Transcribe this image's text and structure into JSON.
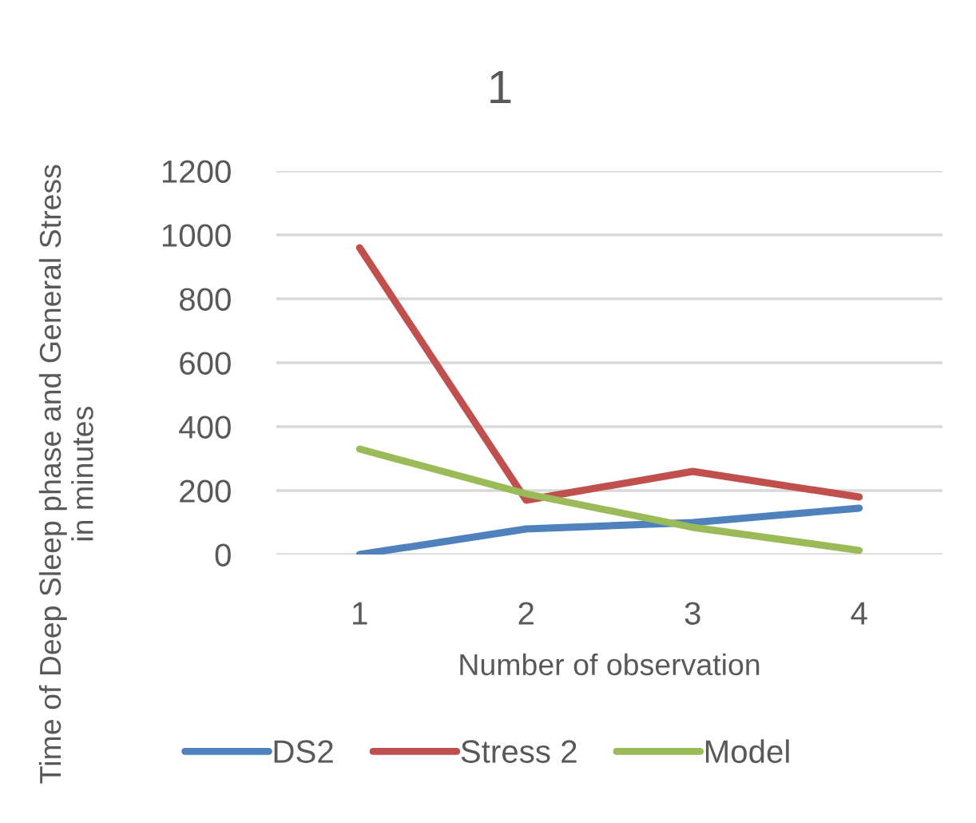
{
  "chart_data": {
    "type": "line",
    "title": "1",
    "xlabel": "Number of observation",
    "ylabel": "Time of Deep Sleep phase and General Stress\nin minutes",
    "categories": [
      "1",
      "2",
      "3",
      "4"
    ],
    "series": [
      {
        "name": "DS2",
        "color": "#4f81bd",
        "values": [
          0,
          80,
          100,
          145
        ]
      },
      {
        "name": "Stress 2",
        "color": "#c0504d",
        "values": [
          960,
          170,
          260,
          180
        ]
      },
      {
        "name": "Model",
        "color": "#9bbb59",
        "values": [
          330,
          190,
          85,
          13
        ]
      }
    ],
    "ylim": [
      0,
      1200
    ],
    "yticks": [
      0,
      200,
      400,
      600,
      800,
      1000,
      1200
    ],
    "grid": "y",
    "legend": "bottom",
    "marker": "none",
    "line_style": "solid"
  }
}
